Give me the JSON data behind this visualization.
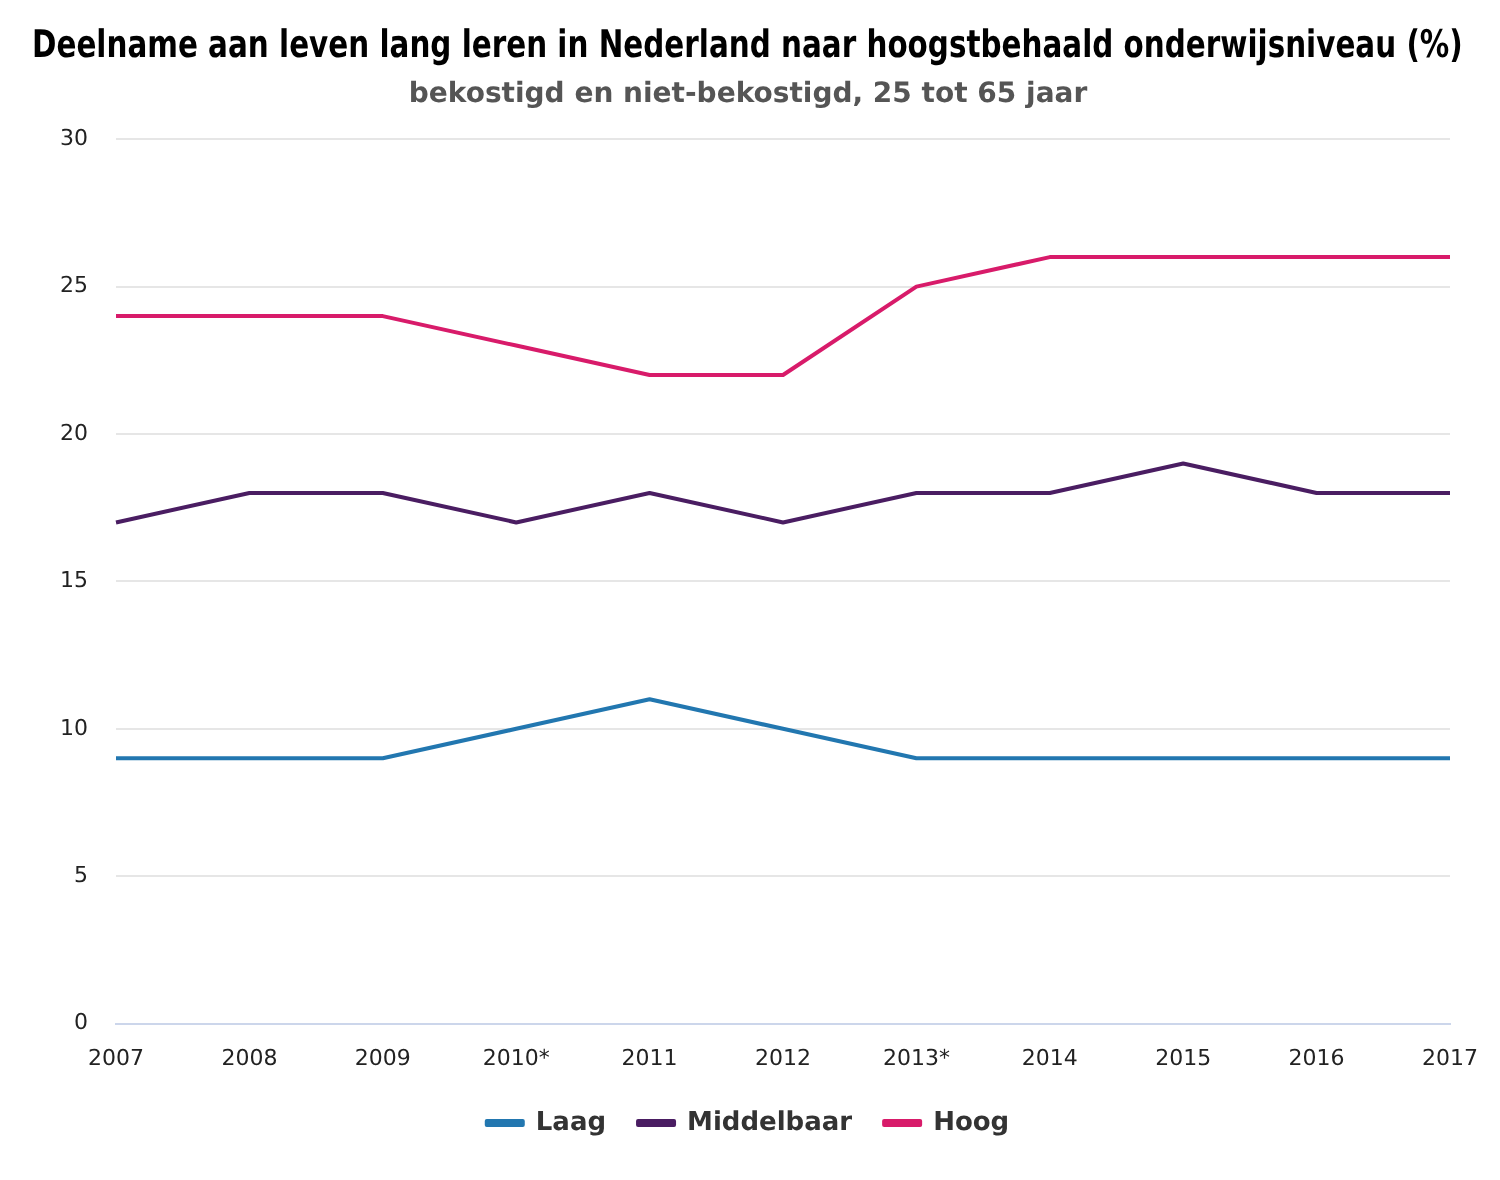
{
  "chart_data": {
    "type": "line",
    "title": "Deelname aan leven lang leren in Nederland naar hoogstbehaald onderwijsniveau (%)",
    "subtitle": "bekostigd en niet-bekostigd, 25 tot 65 jaar",
    "categories": [
      "2007",
      "2008",
      "2009",
      "2010*",
      "2011",
      "2012",
      "2013*",
      "2014",
      "2015",
      "2016",
      "2017"
    ],
    "series": [
      {
        "name": "Laag",
        "color": "#2277b0",
        "values": [
          9,
          9,
          9,
          10,
          11,
          10,
          9,
          9,
          9,
          9,
          9
        ]
      },
      {
        "name": "Middelbaar",
        "color": "#4a1d62",
        "values": [
          17,
          18,
          18,
          17,
          18,
          17,
          18,
          18,
          19,
          18,
          18
        ]
      },
      {
        "name": "Hoog",
        "color": "#d81b6a",
        "values": [
          24,
          24,
          24,
          23,
          22,
          22,
          25,
          26,
          26,
          26,
          26
        ]
      }
    ],
    "ylim": [
      0,
      30
    ],
    "yticks": [
      0,
      5,
      10,
      15,
      20,
      25,
      30
    ],
    "grid": "y",
    "legend": "bottom",
    "marker": "none",
    "line_style": "solid"
  }
}
